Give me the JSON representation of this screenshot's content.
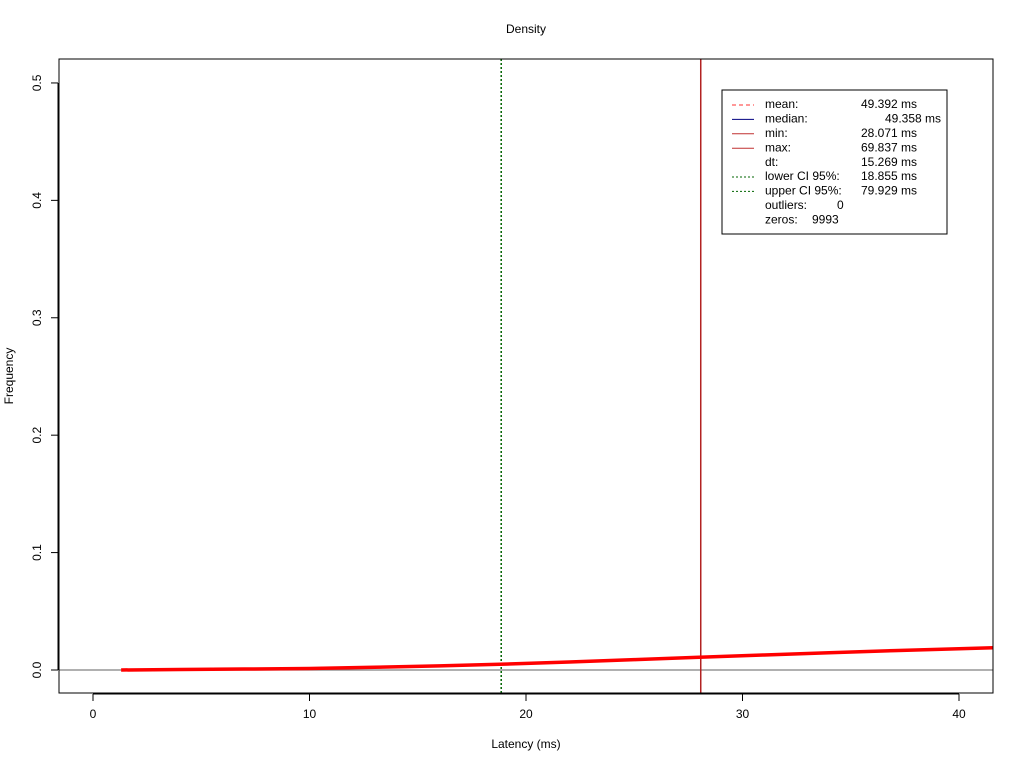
{
  "chart_data": {
    "type": "line",
    "title": "Density",
    "x_label": "Latency (ms)",
    "y_label": "Frequency",
    "xlim": [
      -1.57,
      41.57
    ],
    "ylim": [
      -0.0196,
      0.5204
    ],
    "xticks": [
      0,
      10,
      20,
      30,
      40
    ],
    "yticks": [
      {
        "value": 0,
        "label": "0.0"
      },
      0.1,
      0.2,
      0.3,
      0.4,
      0.5
    ],
    "x": [
      1.3,
      4,
      7,
      10,
      13,
      16,
      19,
      22,
      25,
      28,
      31,
      34,
      37,
      40,
      41.6
    ],
    "series": [
      {
        "color": "#ff0000",
        "values": [
          0.0,
          0.0004,
          0.0008,
          0.0013,
          0.0023,
          0.0035,
          0.005,
          0.0068,
          0.0088,
          0.0108,
          0.0128,
          0.0147,
          0.0165,
          0.0181,
          0.019
        ]
      }
    ],
    "hlines": [
      {
        "value": 0,
        "color": "#808080",
        "linestyle": "solid"
      }
    ],
    "vlines": [
      {
        "value": 18.855,
        "color": "#006400",
        "linestyle": "dotted"
      },
      {
        "value": 28.071,
        "color": "#b22222",
        "linestyle": "solid"
      }
    ],
    "legend": [
      {
        "label": "mean:",
        "value": "49.392 ms",
        "color": "#ff3030",
        "linestyle": "dashed"
      },
      {
        "label": "median:",
        "value": "49.358 ms",
        "color": "#000080",
        "linestyle": "solid"
      },
      {
        "label": "min:",
        "value": "28.071 ms",
        "color": "#c03030",
        "linestyle": "solid"
      },
      {
        "label": "max:",
        "value": "69.837 ms",
        "color": "#c03030",
        "linestyle": "solid"
      },
      {
        "label": "dt:",
        "value": "15.269 ms"
      },
      {
        "label": "lower CI 95%:",
        "value": "18.855 ms",
        "color": "#006400",
        "linestyle": "dotted"
      },
      {
        "label": "upper CI 95%:",
        "value": "79.929 ms",
        "color": "#006400",
        "linestyle": "dotted"
      },
      {
        "label": "outliers:",
        "value": "0"
      },
      {
        "label": "zeros:",
        "value": "9993"
      }
    ]
  }
}
